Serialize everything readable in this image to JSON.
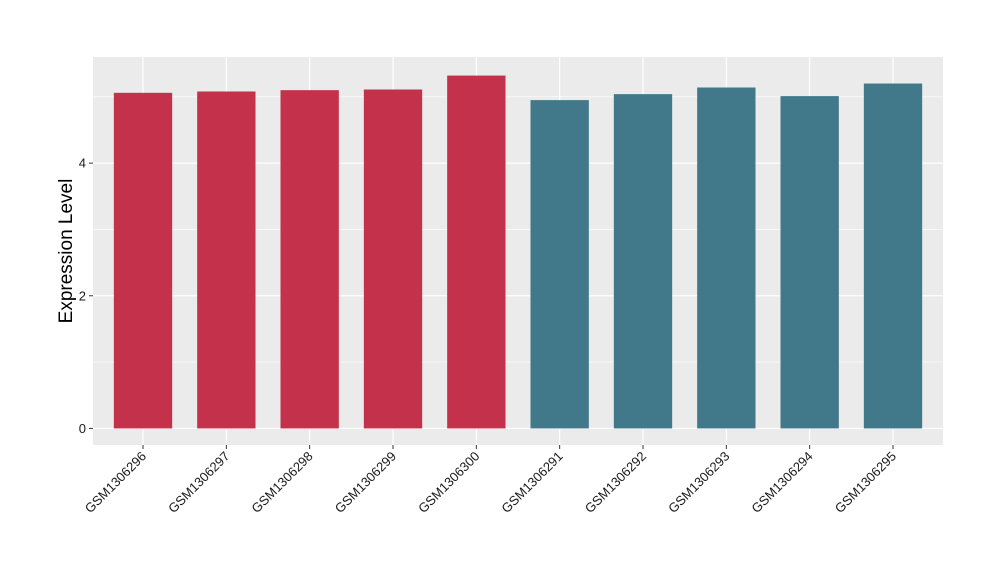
{
  "chart_data": {
    "type": "bar",
    "title": "",
    "xlabel": "",
    "ylabel": "Expression Level",
    "categories": [
      "GSM1306296",
      "GSM1306297",
      "GSM1306298",
      "GSM1306299",
      "GSM1306300",
      "GSM1306291",
      "GSM1306292",
      "GSM1306293",
      "GSM1306294",
      "GSM1306295"
    ],
    "values": [
      5.06,
      5.08,
      5.1,
      5.11,
      5.32,
      4.95,
      5.04,
      5.14,
      5.01,
      5.2
    ],
    "bar_colors": [
      "#c3314a",
      "#c3314a",
      "#c3314a",
      "#c3314a",
      "#c3314a",
      "#41788a",
      "#41788a",
      "#41788a",
      "#41788a",
      "#41788a"
    ],
    "ylim": [
      -0.25,
      5.6
    ],
    "yticks": [
      0,
      2,
      4
    ],
    "grid": true,
    "panel_background": "#ebebeb",
    "gridline_color": "#ffffff"
  }
}
